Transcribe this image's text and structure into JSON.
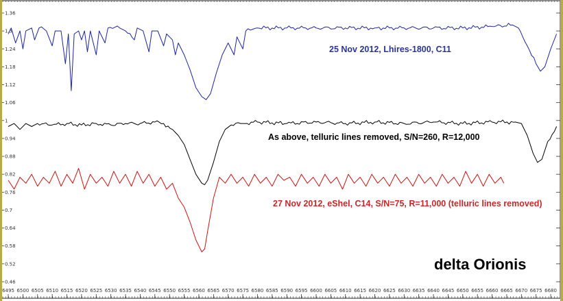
{
  "chart_data": {
    "type": "line",
    "title": "delta Orionis",
    "xlabel": "",
    "ylabel": "",
    "xlim": [
      6492.5,
      6683.5
    ],
    "ylim": [
      0.43,
      1.4
    ],
    "grid": false,
    "legend": "none",
    "x_ticks": [
      6495,
      6500,
      6505,
      6510,
      6515,
      6520,
      6525,
      6530,
      6535,
      6540,
      6545,
      6550,
      6555,
      6560,
      6565,
      6570,
      6575,
      6580,
      6585,
      6590,
      6595,
      6600,
      6605,
      6610,
      6615,
      6620,
      6625,
      6630,
      6635,
      6640,
      6645,
      6650,
      6655,
      6660,
      6665,
      6670,
      6675,
      6680
    ],
    "y_ticks": [
      "1.36",
      "1.3",
      "1.24",
      "1.18",
      "1.12",
      "1.06",
      "1",
      "0.94",
      "0.88",
      "0.82",
      "0.76",
      "0.7",
      "0.64",
      "0.58",
      "0.52",
      "0.46"
    ],
    "series": [
      {
        "name": "25 Nov 2012, Lhires-1800, C11",
        "color": "#1a23a0",
        "points": [
          [
            6495,
            1.29
          ],
          [
            6496,
            1.31
          ],
          [
            6497.5,
            1.26
          ],
          [
            6499,
            1.3
          ],
          [
            6500,
            1.24
          ],
          [
            6501,
            1.3
          ],
          [
            6503,
            1.31
          ],
          [
            6504,
            1.27
          ],
          [
            6505.5,
            1.31
          ],
          [
            6508,
            1.3
          ],
          [
            6510,
            1.25
          ],
          [
            6511,
            1.3
          ],
          [
            6513,
            1.3
          ],
          [
            6514.5,
            1.19
          ],
          [
            6515.5,
            1.29
          ],
          [
            6516.5,
            1.1
          ],
          [
            6517.5,
            1.29
          ],
          [
            6519,
            1.3
          ],
          [
            6520,
            1.27
          ],
          [
            6521,
            1.3
          ],
          [
            6522,
            1.23
          ],
          [
            6523,
            1.3
          ],
          [
            6525,
            1.22
          ],
          [
            6526,
            1.3
          ],
          [
            6528,
            1.26
          ],
          [
            6529,
            1.31
          ],
          [
            6533,
            1.31
          ],
          [
            6535,
            1.3
          ],
          [
            6538,
            1.27
          ],
          [
            6539,
            1.31
          ],
          [
            6541,
            1.3
          ],
          [
            6543,
            1.23
          ],
          [
            6544,
            1.3
          ],
          [
            6546,
            1.3
          ],
          [
            6548,
            1.25
          ],
          [
            6549,
            1.29
          ],
          [
            6551,
            1.27
          ],
          [
            6552,
            1.22
          ],
          [
            6553,
            1.26
          ],
          [
            6555,
            1.22
          ],
          [
            6557,
            1.17
          ],
          [
            6559,
            1.11
          ],
          [
            6561,
            1.08
          ],
          [
            6562.5,
            1.07
          ],
          [
            6564,
            1.09
          ],
          [
            6566,
            1.16
          ],
          [
            6568,
            1.22
          ],
          [
            6570,
            1.26
          ],
          [
            6572,
            1.22
          ],
          [
            6573,
            1.28
          ],
          [
            6575,
            1.24
          ],
          [
            6576,
            1.3
          ],
          [
            6580,
            1.31
          ],
          [
            6590,
            1.31
          ],
          [
            6600,
            1.31
          ],
          [
            6610,
            1.31
          ],
          [
            6620,
            1.31
          ],
          [
            6630,
            1.31
          ],
          [
            6640,
            1.31
          ],
          [
            6650,
            1.31
          ],
          [
            6660,
            1.315
          ],
          [
            6667,
            1.32
          ],
          [
            6669,
            1.31
          ],
          [
            6672,
            1.25
          ],
          [
            6675,
            1.19
          ],
          [
            6676.5,
            1.165
          ],
          [
            6678,
            1.18
          ],
          [
            6680,
            1.24
          ],
          [
            6682,
            1.29
          ]
        ]
      },
      {
        "name": "As above, telluric lines removed, S/N=260, R=12,000",
        "color": "#000000",
        "points": [
          [
            6495,
            0.98
          ],
          [
            6497,
            0.99
          ],
          [
            6499,
            0.97
          ],
          [
            6501,
            0.99
          ],
          [
            6503,
            0.98
          ],
          [
            6505,
            0.99
          ],
          [
            6510,
            0.985
          ],
          [
            6515,
            0.99
          ],
          [
            6520,
            0.985
          ],
          [
            6525,
            0.99
          ],
          [
            6530,
            0.985
          ],
          [
            6535,
            0.99
          ],
          [
            6540,
            0.99
          ],
          [
            6545,
            0.995
          ],
          [
            6548,
            0.99
          ],
          [
            6551,
            0.97
          ],
          [
            6553,
            0.95
          ],
          [
            6555,
            0.92
          ],
          [
            6557,
            0.87
          ],
          [
            6559,
            0.82
          ],
          [
            6561,
            0.79
          ],
          [
            6562,
            0.785
          ],
          [
            6563,
            0.8
          ],
          [
            6565,
            0.86
          ],
          [
            6567,
            0.93
          ],
          [
            6569,
            0.97
          ],
          [
            6571,
            0.985
          ],
          [
            6575,
            0.99
          ],
          [
            6580,
            0.995
          ],
          [
            6590,
            0.99
          ],
          [
            6600,
            0.995
          ],
          [
            6610,
            0.99
          ],
          [
            6620,
            0.995
          ],
          [
            6630,
            0.99
          ],
          [
            6640,
            0.995
          ],
          [
            6650,
            0.99
          ],
          [
            6660,
            0.995
          ],
          [
            6668,
            0.995
          ],
          [
            6670,
            0.99
          ],
          [
            6672,
            0.95
          ],
          [
            6674,
            0.89
          ],
          [
            6675.5,
            0.86
          ],
          [
            6677,
            0.87
          ],
          [
            6679,
            0.93
          ],
          [
            6682,
            0.98
          ]
        ]
      },
      {
        "name": "27 Nov 2012, eShel, C14, S/N=75, R=11,000 (telluric lines removed)",
        "color": "#cc1111",
        "points": [
          [
            6495,
            0.8
          ],
          [
            6497,
            0.77
          ],
          [
            6499,
            0.81
          ],
          [
            6501,
            0.79
          ],
          [
            6503,
            0.82
          ],
          [
            6505,
            0.78
          ],
          [
            6507,
            0.81
          ],
          [
            6509,
            0.79
          ],
          [
            6511,
            0.83
          ],
          [
            6513,
            0.78
          ],
          [
            6515,
            0.82
          ],
          [
            6517,
            0.79
          ],
          [
            6519,
            0.84
          ],
          [
            6521,
            0.77
          ],
          [
            6523,
            0.82
          ],
          [
            6525,
            0.79
          ],
          [
            6527,
            0.81
          ],
          [
            6529,
            0.78
          ],
          [
            6531,
            0.83
          ],
          [
            6533,
            0.79
          ],
          [
            6535,
            0.82
          ],
          [
            6537,
            0.78
          ],
          [
            6539,
            0.83
          ],
          [
            6541,
            0.79
          ],
          [
            6543,
            0.82
          ],
          [
            6545,
            0.78
          ],
          [
            6547,
            0.81
          ],
          [
            6549,
            0.77
          ],
          [
            6551,
            0.79
          ],
          [
            6553,
            0.74
          ],
          [
            6555,
            0.71
          ],
          [
            6557,
            0.66
          ],
          [
            6559,
            0.6
          ],
          [
            6561,
            0.56
          ],
          [
            6562,
            0.57
          ],
          [
            6563,
            0.63
          ],
          [
            6565,
            0.74
          ],
          [
            6567,
            0.81
          ],
          [
            6569,
            0.79
          ],
          [
            6571,
            0.82
          ],
          [
            6573,
            0.79
          ],
          [
            6575,
            0.81
          ],
          [
            6577,
            0.78
          ],
          [
            6579,
            0.82
          ],
          [
            6581,
            0.79
          ],
          [
            6583,
            0.81
          ],
          [
            6585,
            0.78
          ],
          [
            6587,
            0.82
          ],
          [
            6589,
            0.8
          ],
          [
            6591,
            0.81
          ],
          [
            6593,
            0.78
          ],
          [
            6595,
            0.82
          ],
          [
            6597,
            0.79
          ],
          [
            6599,
            0.81
          ],
          [
            6601,
            0.78
          ],
          [
            6603,
            0.82
          ],
          [
            6605,
            0.79
          ],
          [
            6607,
            0.81
          ],
          [
            6609,
            0.77
          ],
          [
            6611,
            0.82
          ],
          [
            6613,
            0.79
          ],
          [
            6615,
            0.81
          ],
          [
            6617,
            0.78
          ],
          [
            6619,
            0.82
          ],
          [
            6621,
            0.79
          ],
          [
            6623,
            0.81
          ],
          [
            6625,
            0.78
          ],
          [
            6627,
            0.82
          ],
          [
            6629,
            0.79
          ],
          [
            6631,
            0.81
          ],
          [
            6633,
            0.78
          ],
          [
            6635,
            0.82
          ],
          [
            6637,
            0.79
          ],
          [
            6639,
            0.81
          ],
          [
            6641,
            0.78
          ],
          [
            6643,
            0.82
          ],
          [
            6645,
            0.79
          ],
          [
            6647,
            0.81
          ],
          [
            6649,
            0.78
          ],
          [
            6651,
            0.83
          ],
          [
            6653,
            0.79
          ],
          [
            6655,
            0.82
          ],
          [
            6657,
            0.78
          ],
          [
            6659,
            0.82
          ],
          [
            6661,
            0.79
          ],
          [
            6663,
            0.81
          ],
          [
            6664,
            0.79
          ]
        ]
      }
    ]
  }
}
